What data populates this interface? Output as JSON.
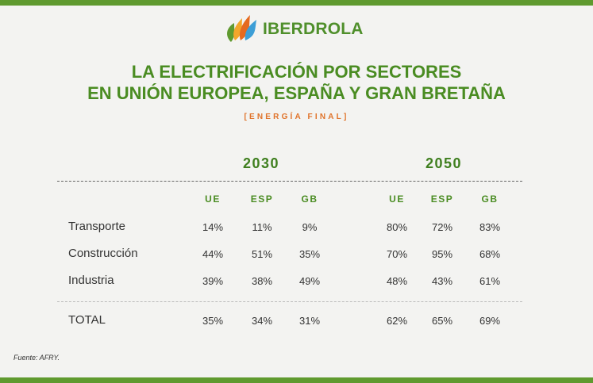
{
  "brand": {
    "name": "IBERDROLA"
  },
  "title": {
    "line1": "LA ELECTRIFICACIÓN POR SECTORES",
    "line2": "EN UNIÓN EUROPEA, ESPAÑA Y GRAN BRETAÑA"
  },
  "subtitle": "[ENERGÍA FINAL]",
  "years": [
    "2030",
    "2050"
  ],
  "columns": [
    "UE",
    "ESP",
    "GB"
  ],
  "rows": [
    {
      "label": "Transporte",
      "y2030": [
        "14%",
        "11%",
        "9%"
      ],
      "y2050": [
        "80%",
        "72%",
        "83%"
      ]
    },
    {
      "label": "Construcción",
      "y2030": [
        "44%",
        "51%",
        "35%"
      ],
      "y2050": [
        "70%",
        "95%",
        "68%"
      ]
    },
    {
      "label": "Industria",
      "y2030": [
        "39%",
        "38%",
        "49%"
      ],
      "y2050": [
        "48%",
        "43%",
        "61%"
      ]
    }
  ],
  "total": {
    "label": "TOTAL",
    "y2030": [
      "35%",
      "34%",
      "31%"
    ],
    "y2050": [
      "62%",
      "65%",
      "69%"
    ]
  },
  "source": "Fuente: AFRY.",
  "colors": {
    "green": "#4a8c22",
    "orange": "#e0732a",
    "bar": "#5f9a2f"
  }
}
